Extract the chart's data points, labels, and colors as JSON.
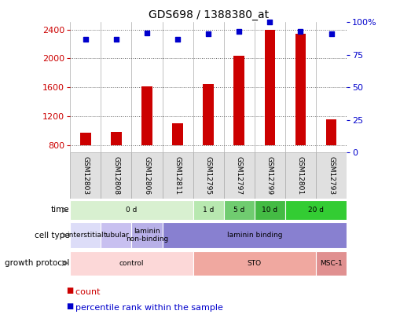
{
  "title": "GDS698 / 1388380_at",
  "samples": [
    "GSM12803",
    "GSM12808",
    "GSM12806",
    "GSM12811",
    "GSM12795",
    "GSM12797",
    "GSM12799",
    "GSM12801",
    "GSM12793"
  ],
  "counts": [
    980,
    990,
    1620,
    1110,
    1650,
    2040,
    2390,
    2340,
    1155
  ],
  "percentile_ranks": [
    87,
    87,
    92,
    87,
    91,
    93,
    100,
    93,
    91
  ],
  "ylim_left": [
    700,
    2500
  ],
  "yticks_left": [
    800,
    1200,
    1600,
    2000,
    2400
  ],
  "ylim_right": [
    0,
    100
  ],
  "yticks_right": [
    0,
    25,
    50,
    75,
    100
  ],
  "bar_color": "#cc0000",
  "dot_color": "#0000cc",
  "bar_width": 0.35,
  "time_row": {
    "groups": [
      {
        "label": "0 d",
        "start": 0,
        "end": 3,
        "color": "#d8f0d0"
      },
      {
        "label": "1 d",
        "start": 4,
        "end": 4,
        "color": "#b8e8b0"
      },
      {
        "label": "5 d",
        "start": 5,
        "end": 5,
        "color": "#70cc70"
      },
      {
        "label": "10 d",
        "start": 6,
        "end": 6,
        "color": "#44bb44"
      },
      {
        "label": "20 d",
        "start": 7,
        "end": 8,
        "color": "#33cc33"
      }
    ]
  },
  "cell_type_row": {
    "groups": [
      {
        "label": "interstitial",
        "start": 0,
        "end": 0,
        "color": "#ddddf8"
      },
      {
        "label": "tubular",
        "start": 1,
        "end": 1,
        "color": "#c8c0f0"
      },
      {
        "label": "laminin\nnon-binding",
        "start": 2,
        "end": 2,
        "color": "#b8b0e8"
      },
      {
        "label": "laminin binding",
        "start": 3,
        "end": 8,
        "color": "#8880d0"
      }
    ]
  },
  "growth_protocol_row": {
    "groups": [
      {
        "label": "control",
        "start": 0,
        "end": 3,
        "color": "#fcd8d8"
      },
      {
        "label": "STO",
        "start": 4,
        "end": 7,
        "color": "#f0a8a0"
      },
      {
        "label": "MSC-1",
        "start": 8,
        "end": 8,
        "color": "#e09090"
      }
    ]
  },
  "row_labels": [
    "time",
    "cell type",
    "growth protocol"
  ],
  "legend_items": [
    {
      "color": "#cc0000",
      "label": "count"
    },
    {
      "color": "#0000cc",
      "label": "percentile rank within the sample"
    }
  ],
  "tick_color_left": "#cc0000",
  "tick_color_right": "#0000cc",
  "background_color": "#ffffff",
  "grid_color": "#666666",
  "sample_box_color": "#e0e0e0",
  "sample_border_color": "#aaaaaa"
}
